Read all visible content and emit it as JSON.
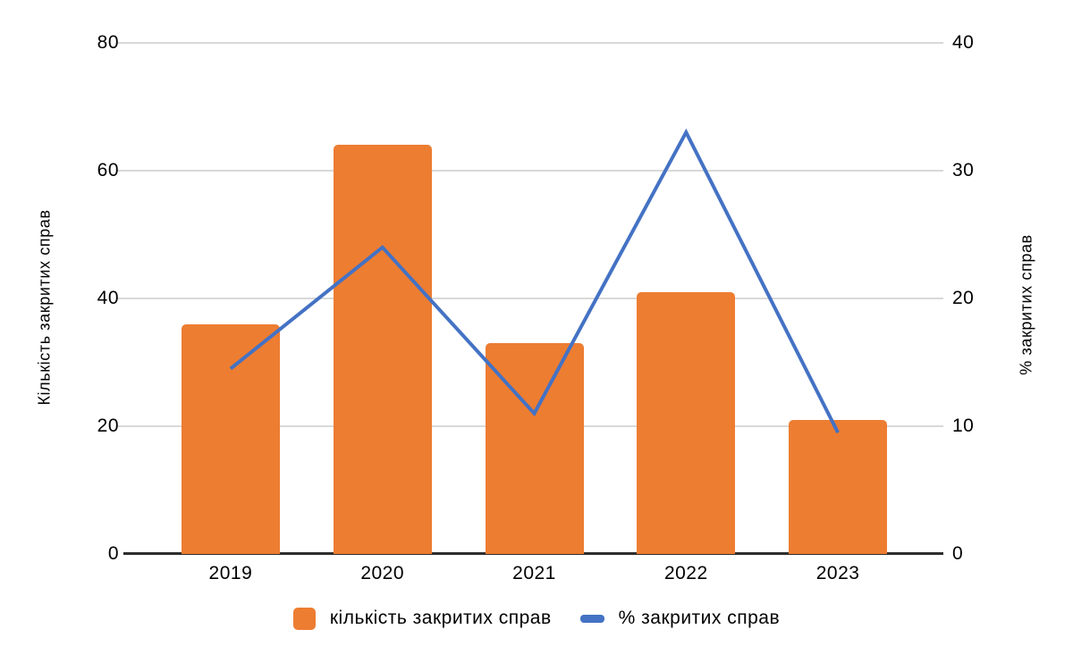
{
  "chart_data": {
    "type": "combo",
    "categories": [
      "2019",
      "2020",
      "2021",
      "2022",
      "2023"
    ],
    "series": [
      {
        "name": "кількість закритих справ",
        "type": "bar",
        "axis": "left",
        "color": "#ED7D31",
        "values": [
          36,
          64,
          33,
          41,
          21
        ]
      },
      {
        "name": "% закритих справ",
        "type": "line",
        "axis": "right",
        "color": "#4472C4",
        "values": [
          14.5,
          24,
          11,
          33,
          9.5
        ]
      }
    ],
    "left_axis": {
      "title": "Кількість закритих справ",
      "min": 0,
      "max": 80,
      "ticks": [
        0,
        20,
        40,
        60,
        80
      ]
    },
    "right_axis": {
      "title": "% закритих справ",
      "min": 0,
      "max": 40,
      "ticks": [
        0,
        10,
        20,
        30,
        40
      ]
    },
    "grid": true,
    "legend_position": "bottom",
    "colors": {
      "gridline": "#D9D9D9",
      "axis_line": "#2E2E2E",
      "text": "#000000"
    }
  }
}
